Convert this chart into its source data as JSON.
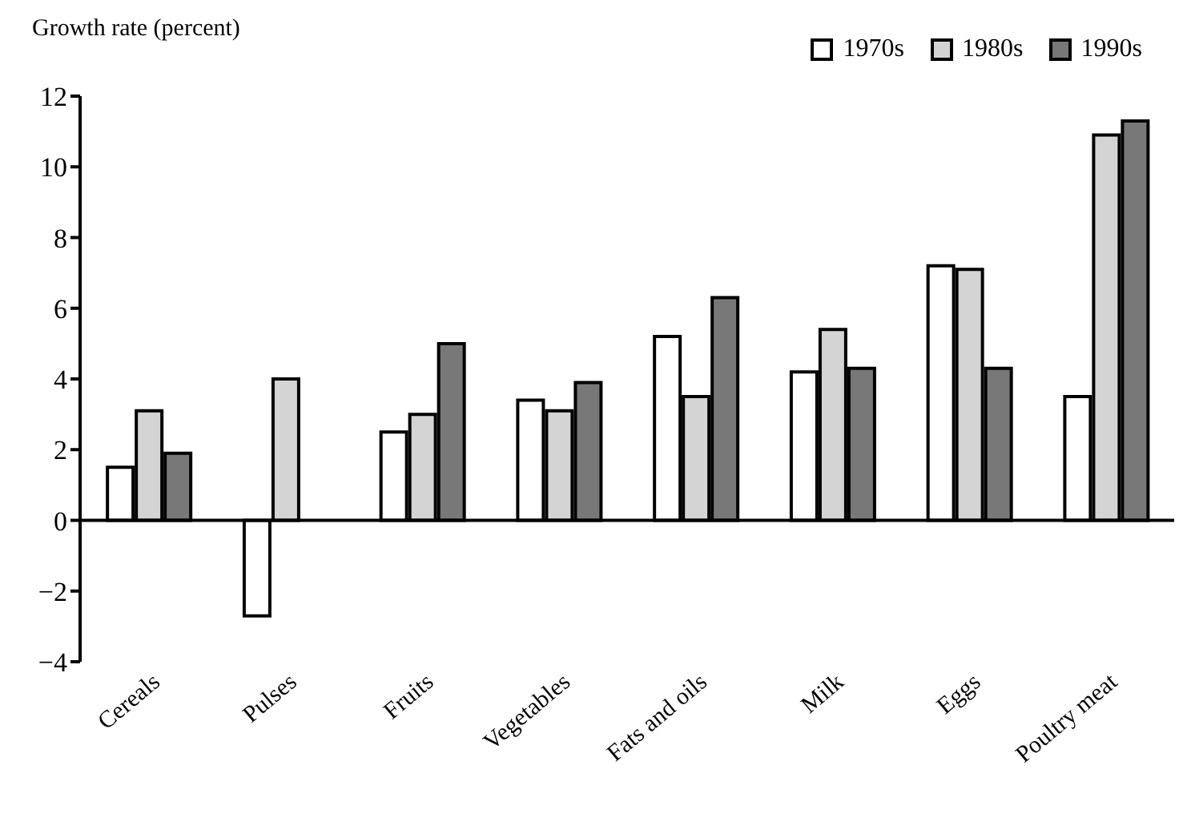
{
  "chart_data": {
    "type": "bar",
    "ylabel": "Growth rate (percent)",
    "categories": [
      "Cereals",
      "Pulses",
      "Fruits",
      "Vegetables",
      "Fats and oils",
      "Milk",
      "Eggs",
      "Poultry meat"
    ],
    "series": [
      {
        "name": "1970s",
        "color": "#ffffff",
        "values": [
          1.5,
          -2.7,
          2.5,
          3.4,
          5.2,
          4.2,
          7.2,
          3.5
        ]
      },
      {
        "name": "1980s",
        "color": "#d4d4d4",
        "values": [
          3.1,
          4.0,
          3.0,
          3.1,
          3.5,
          5.4,
          7.1,
          10.9
        ]
      },
      {
        "name": "1990s",
        "color": "#787878",
        "values": [
          1.9,
          null,
          5.0,
          3.9,
          6.3,
          4.3,
          4.3,
          11.3
        ]
      }
    ],
    "ylim": [
      -4,
      12
    ],
    "yticks": [
      {
        "value": -4,
        "label": "−4"
      },
      {
        "value": -2,
        "label": "−2"
      },
      0,
      2,
      4,
      6,
      8,
      10,
      12
    ],
    "legend": "top right"
  }
}
